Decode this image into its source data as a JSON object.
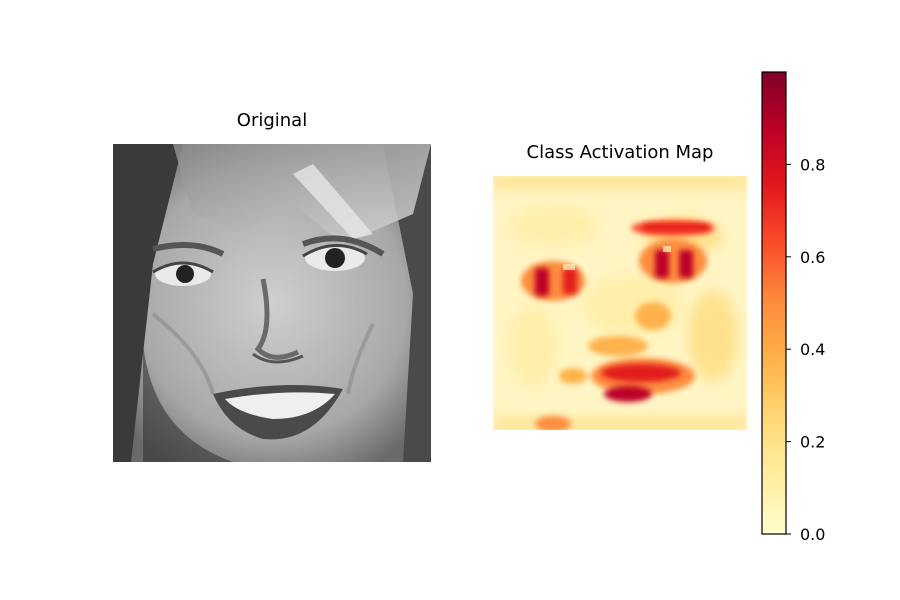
{
  "chart_data": [
    {
      "type": "image",
      "title": "Original",
      "colormap": "gray",
      "axes": "off"
    },
    {
      "type": "heatmap",
      "title": "Class Activation Map",
      "colormap": "YlOrRd",
      "axes": "off",
      "colorbar": {
        "vmin": 0.0,
        "vmax": 1.0,
        "ticks": [
          0.0,
          0.2,
          0.4,
          0.6,
          0.8
        ],
        "tick_labels": [
          "0.0",
          "0.2",
          "0.4",
          "0.6",
          "0.8"
        ],
        "colors": [
          "#ffffcc",
          "#ffeda0",
          "#fed976",
          "#feb24c",
          "#fd8d3c",
          "#fc4e2a",
          "#e31a1c",
          "#bd0026",
          "#800026"
        ]
      },
      "high_activation_regions": [
        "left eye",
        "right eye",
        "right eyebrow",
        "mouth",
        "nose tip"
      ]
    }
  ]
}
